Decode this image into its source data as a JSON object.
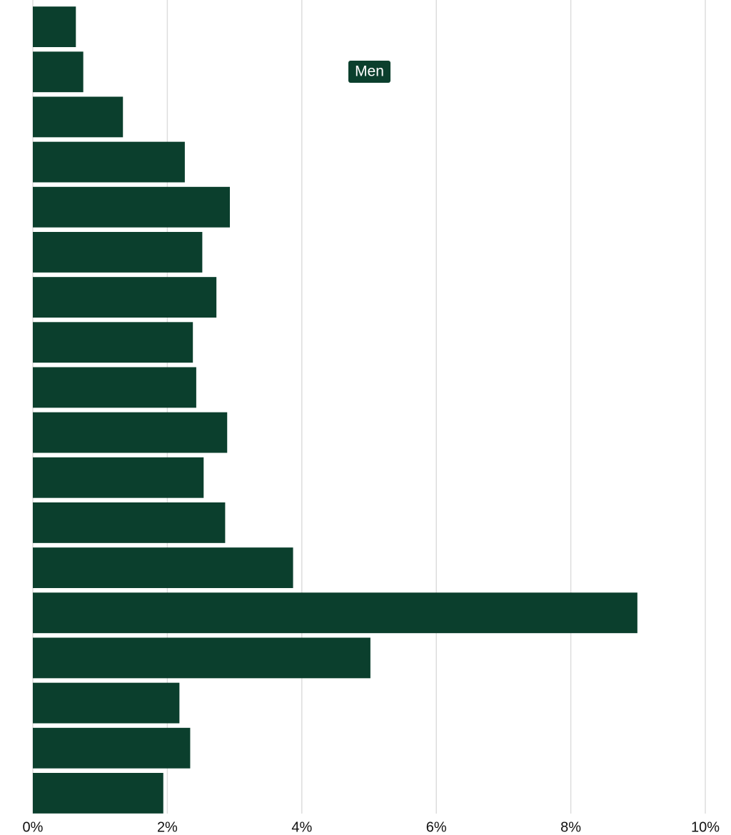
{
  "chart_data": {
    "type": "bar",
    "orientation": "horizontal",
    "categories": [
      null,
      null,
      null,
      null,
      null,
      null,
      null,
      null,
      null,
      null,
      null,
      null,
      null,
      null,
      null,
      null,
      null,
      null
    ],
    "series": [
      {
        "name": "Men",
        "color": "#0b3f2d",
        "values": [
          0.64,
          0.75,
          1.34,
          2.26,
          2.93,
          2.52,
          2.73,
          2.38,
          2.43,
          2.89,
          2.54,
          2.86,
          3.87,
          8.99,
          5.02,
          2.18,
          2.34,
          1.94
        ]
      }
    ],
    "xlim": [
      0,
      10
    ],
    "xticks": [
      {
        "value": 0,
        "label": "0%"
      },
      {
        "value": 2,
        "label": "2%"
      },
      {
        "value": 4,
        "label": "4%"
      },
      {
        "value": 6,
        "label": "6%"
      },
      {
        "value": 8,
        "label": "8%"
      },
      {
        "value": 10,
        "label": "10%"
      }
    ],
    "grid": true
  }
}
